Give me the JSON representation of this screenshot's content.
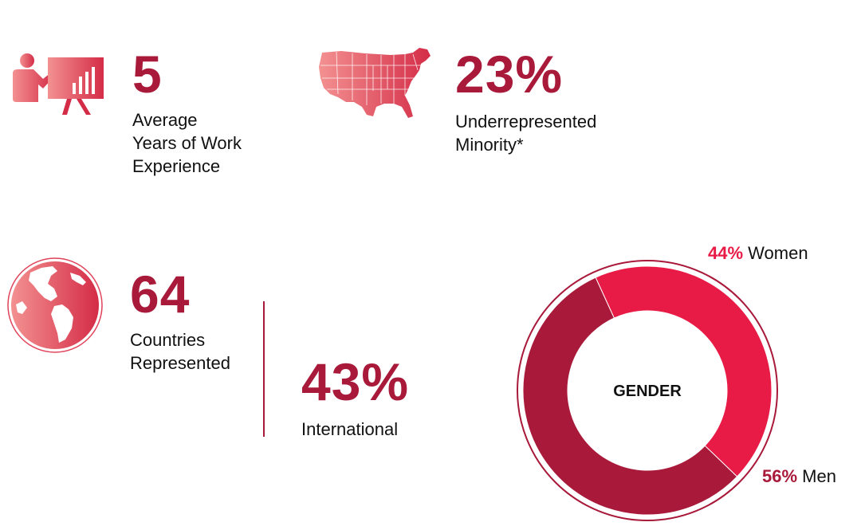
{
  "stats": {
    "experience": {
      "value": "5",
      "label_lines": [
        "Average",
        "Years of Work",
        "Experience"
      ]
    },
    "minority": {
      "value": "23%",
      "label_lines": [
        "Underrepresented",
        "Minority*"
      ]
    },
    "countries": {
      "value": "64",
      "label_lines": [
        "Countries",
        "Represented"
      ]
    },
    "international": {
      "value": "43%",
      "label_lines": [
        "International"
      ]
    }
  },
  "icons": {
    "experience": "presentation-icon",
    "minority": "usa-map-icon",
    "countries": "globe-icon"
  },
  "colors": {
    "accent": "#a8193a",
    "women": "#e81b47",
    "men": "#a8193a",
    "icon_light": "#f08585",
    "icon_dark": "#d62f48"
  },
  "chart_data": {
    "type": "pie",
    "title": "GENDER",
    "slices": [
      {
        "name": "Women",
        "value": 44,
        "label_pct": "44%",
        "color": "#e81b47"
      },
      {
        "name": "Men",
        "value": 56,
        "label_pct": "56%",
        "color": "#a8193a"
      }
    ]
  }
}
